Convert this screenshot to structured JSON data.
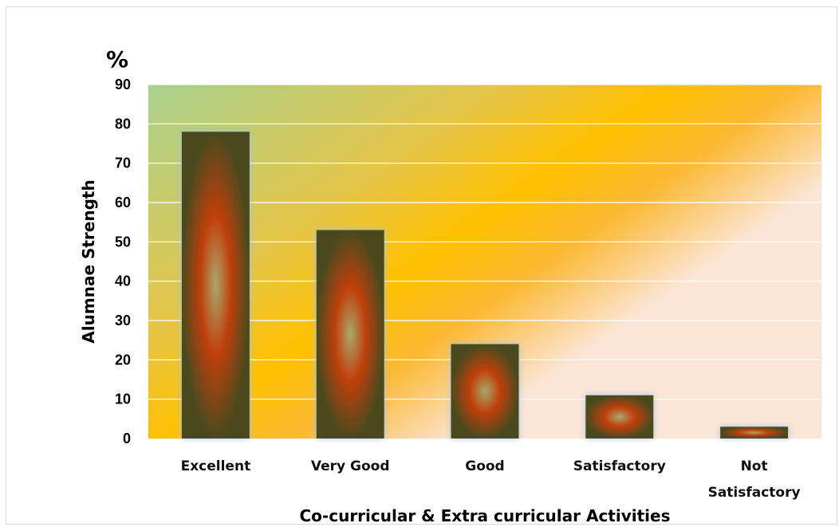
{
  "chart_data": {
    "type": "bar",
    "categories": [
      "Excellent",
      "Very Good",
      "Good",
      "Satisfactory",
      "Not Satisfactory"
    ],
    "values": [
      78,
      53,
      24,
      11,
      3
    ],
    "title": "",
    "xlabel": "Co-curricular & Extra curricular Activities",
    "ylabel": "Alumnae Strength",
    "unit_label": "%",
    "ylim": [
      0,
      90
    ],
    "yticks": [
      0,
      10,
      20,
      30,
      40,
      50,
      60,
      70,
      80,
      90
    ],
    "grid": true,
    "legend": "none",
    "colors": {
      "plot_gradient": [
        "#a9d18e",
        "#ffc000",
        "#fbe5d6"
      ],
      "bar_edge": "#4a4a1e",
      "bar_mid": "#c0400c",
      "bar_center": "#a9a86a",
      "bar_glow": "#9dc3e6",
      "gridline": "#ffffff"
    }
  }
}
